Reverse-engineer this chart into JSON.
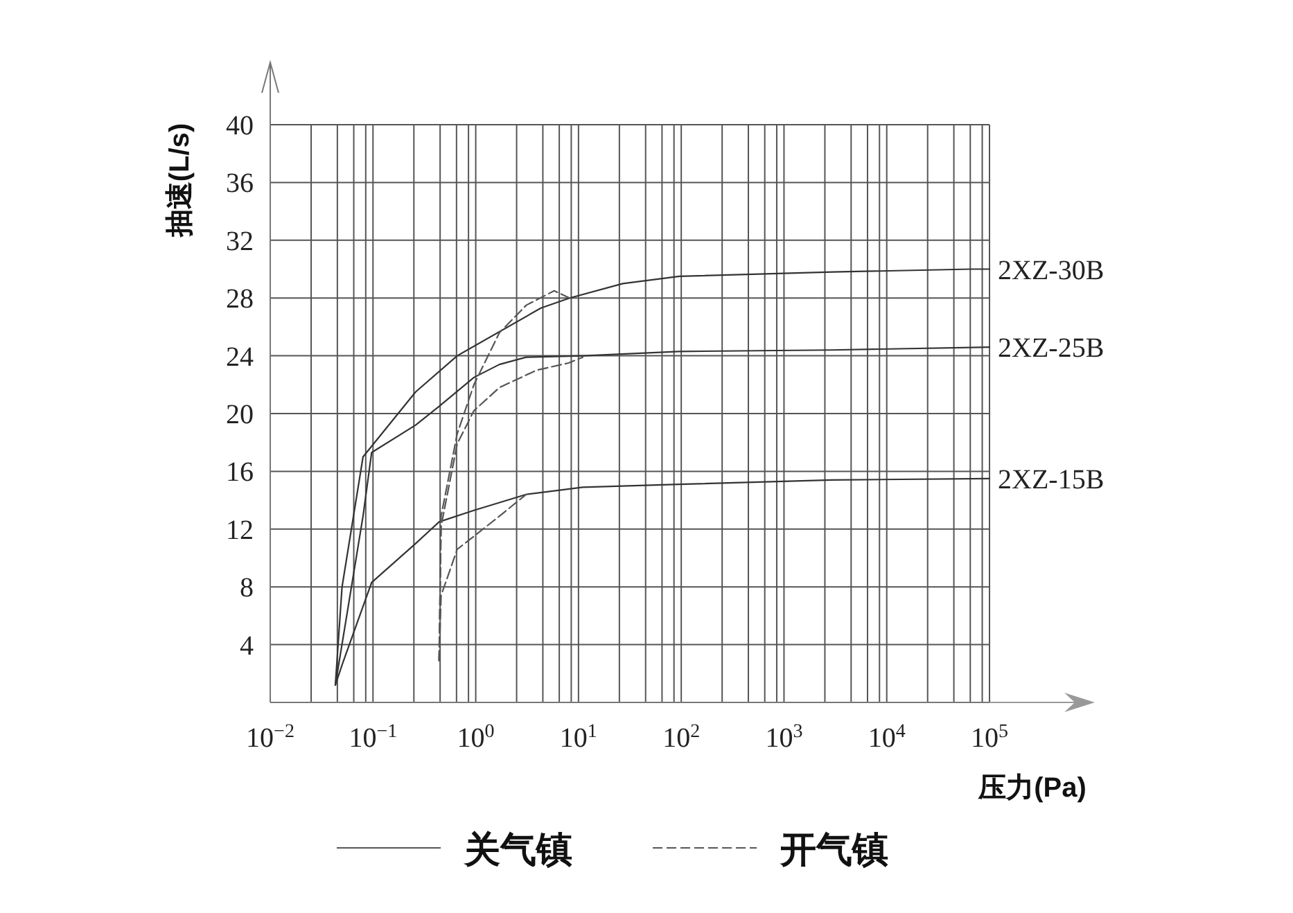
{
  "chart_data": {
    "type": "line",
    "xlabel": "压力(Pa)",
    "ylabel": "抽速(L/s)",
    "log": "x",
    "xlim": [
      0.01,
      100000
    ],
    "ylim": [
      0,
      40
    ],
    "xticks": [
      {
        "value": 0.01,
        "label": "10$^{−2}$"
      },
      {
        "value": 0.025,
        "label": null
      },
      {
        "value": 0.045,
        "label": null
      },
      {
        "value": 0.065,
        "label": null
      },
      {
        "value": 0.085,
        "label": null
      },
      {
        "value": 0.1,
        "label": "10$^{−1}$"
      },
      {
        "value": 0.25,
        "label": null
      },
      {
        "value": 0.45,
        "label": null
      },
      {
        "value": 0.65,
        "label": null
      },
      {
        "value": 0.85,
        "label": null
      },
      {
        "value": 1,
        "label": "10$^{0}$"
      },
      {
        "value": 2.5,
        "label": null
      },
      {
        "value": 4.5,
        "label": null
      },
      {
        "value": 6.5,
        "label": null
      },
      {
        "value": 8.5,
        "label": null
      },
      {
        "value": 10,
        "label": "10$^{1}$"
      },
      {
        "value": 25,
        "label": null
      },
      {
        "value": 45,
        "label": null
      },
      {
        "value": 65,
        "label": null
      },
      {
        "value": 85,
        "label": null
      },
      {
        "value": 100,
        "label": "10$^{2}$"
      },
      {
        "value": 250,
        "label": null
      },
      {
        "value": 450,
        "label": null
      },
      {
        "value": 650,
        "label": null
      },
      {
        "value": 850,
        "label": null
      },
      {
        "value": 1000,
        "label": "10$^{3}$"
      },
      {
        "value": 2500,
        "label": null
      },
      {
        "value": 4500,
        "label": null
      },
      {
        "value": 6500,
        "label": null
      },
      {
        "value": 8500,
        "label": null
      },
      {
        "value": 10000,
        "label": "10$^{4}$"
      },
      {
        "value": 25000,
        "label": null
      },
      {
        "value": 45000,
        "label": null
      },
      {
        "value": 65000,
        "label": null
      },
      {
        "value": 85000,
        "label": null
      },
      {
        "value": 100000,
        "label": "10$^{5}$"
      }
    ],
    "yticks": [
      4,
      8,
      12,
      16,
      20,
      24,
      28,
      32,
      36,
      40
    ],
    "grid": true,
    "series": [
      {
        "name": "2XZ-30B",
        "color": "#333333",
        "line_style": "solid",
        "x": [
          0.043,
          0.05,
          0.08,
          0.26,
          0.66,
          4.3,
          8.2,
          27,
          96,
          2950,
          66000,
          100000
        ],
        "values": [
          1.2,
          8,
          17,
          21.5,
          24,
          27.3,
          28,
          29,
          29.5,
          29.8,
          30,
          30
        ]
      },
      {
        "name": "2XZ-25B",
        "color": "#333333",
        "line_style": "solid",
        "x": [
          0.043,
          0.08,
          0.097,
          0.26,
          0.44,
          0.96,
          1.7,
          3.1,
          11,
          96,
          2950,
          100000
        ],
        "values": [
          1.2,
          12.9,
          17.3,
          19.2,
          20.5,
          22.5,
          23.4,
          23.9,
          24,
          24.3,
          24.4,
          24.6
        ]
      },
      {
        "name": "2XZ-15B",
        "color": "#333333",
        "line_style": "solid",
        "x": [
          0.043,
          0.05,
          0.097,
          0.26,
          0.44,
          0.96,
          3.1,
          11,
          96,
          2950,
          100000
        ],
        "values": [
          1.2,
          2.6,
          8.3,
          11,
          12.5,
          13.3,
          14.4,
          14.9,
          15.1,
          15.4,
          15.5
        ]
      },
      {
        "color": "#555555",
        "line_style": "dashed",
        "x": [
          0.44,
          0.46,
          0.66,
          0.96,
          1.7,
          3.1,
          5.8,
          8.2
        ],
        "values": [
          2.9,
          12.9,
          18.6,
          22,
          25.6,
          27.5,
          28.5,
          28
        ]
      },
      {
        "color": "#555555",
        "line_style": "dashed",
        "x": [
          0.44,
          0.46,
          0.66,
          0.96,
          1.7,
          3.9,
          8,
          11
        ],
        "values": [
          2.9,
          12.2,
          17.9,
          20.2,
          21.8,
          23,
          23.5,
          23.9
        ]
      },
      {
        "color": "#555555",
        "line_style": "dashed",
        "x": [
          0.44,
          0.46,
          0.66,
          0.96,
          1.7,
          3.1
        ],
        "values": [
          2.9,
          7.4,
          10.6,
          11.5,
          12.9,
          14.4
        ]
      }
    ],
    "annotations": [
      "关气镇",
      "开气镇"
    ]
  }
}
